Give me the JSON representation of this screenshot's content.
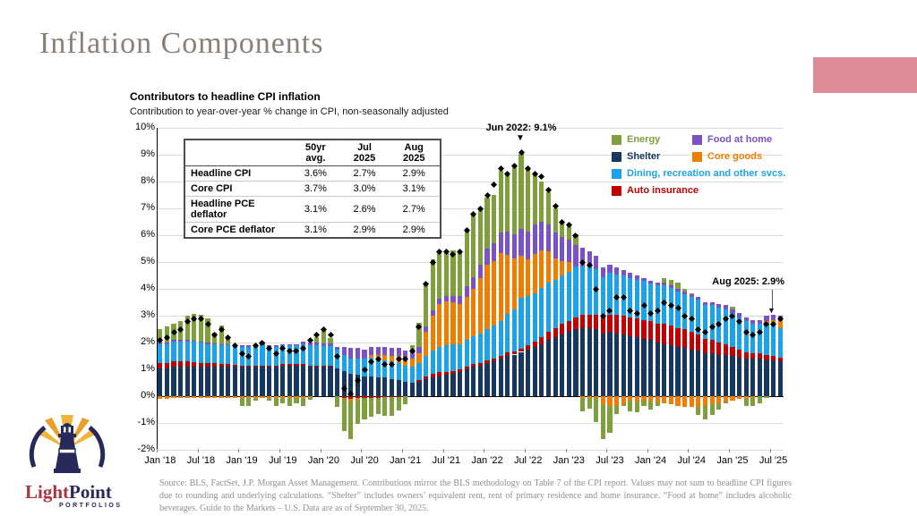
{
  "slide": {
    "title": "Inflation Components",
    "banner_color": "#db8c96"
  },
  "chart_header": {
    "title": "Contributors to headline CPI inflation",
    "subtitle": "Contribution to year-over-year % change in CPI, non-seasonally adjusted"
  },
  "table": {
    "headers": [
      "",
      "50yr avg.",
      "Jul 2025",
      "Aug 2025"
    ],
    "rows": [
      {
        "label": "Headline CPI",
        "values": [
          "3.6%",
          "2.7%",
          "2.9%"
        ]
      },
      {
        "label": "Core CPI",
        "values": [
          "3.7%",
          "3.0%",
          "3.1%"
        ]
      },
      {
        "label": "Headline PCE deflator",
        "values": [
          "3.1%",
          "2.6%",
          "2.7%"
        ]
      },
      {
        "label": "Core PCE deflator",
        "values": [
          "3.1%",
          "2.9%",
          "2.9%"
        ]
      }
    ]
  },
  "annotations": {
    "peak": "Jun 2022: 9.1%",
    "latest": "Aug 2025: 2.9%",
    "arrow_down": "▼"
  },
  "footer": {
    "source": "Source: BLS, FactSet, J.P. Morgan Asset Management.  Contributions mirror the BLS methodology on Table 7 of the CPI report. Values may not sum to headline CPI figures due to rounding and underlying calculations. “Shelter” includes owners’ equivalent rent, rent of primary residence and home insurance. “Food at home” includes alcoholic beverages.  Guide to the Markets – U.S. Data are as of September 30, 2025."
  },
  "logo": {
    "name_part1": "Light",
    "name_part2": "Point",
    "subtitle": "PORTFOLIOS"
  },
  "chart_data": {
    "type": "bar",
    "stacked": true,
    "title": "Contributors to headline CPI inflation",
    "ylabel": "Contribution to year-over-year % change in CPI",
    "ylim": [
      -2,
      10
    ],
    "y_tick_step": 1,
    "grid": true,
    "legend_position": "upper right inside",
    "start_month": "Jan 2018",
    "end_month": "Aug 2025",
    "num_months": 92,
    "x_tick_labels": [
      "Jan '18",
      "Jul '18",
      "Jan '19",
      "Jul '19",
      "Jan '20",
      "Jul '20",
      "Jan '21",
      "Jul '21",
      "Jan '22",
      "Jul '22",
      "Jan '23",
      "Jul '23",
      "Jan '24",
      "Jul '24",
      "Jan '25",
      "Jul '25"
    ],
    "legend": [
      {
        "label": "Energy",
        "color": "#7f9f3c"
      },
      {
        "label": "Food at home",
        "color": "#7a52c3"
      },
      {
        "label": "Shelter",
        "color": "#17375e"
      },
      {
        "label": "Core goods",
        "color": "#ef7d00"
      },
      {
        "label": "Dining, recreation and other svcs.",
        "color": "#1ca2e8"
      },
      {
        "label": "Auto insurance",
        "color": "#c00000"
      }
    ],
    "series": [
      {
        "name": "Shelter",
        "color": "#17375e",
        "values": [
          1.05,
          1.05,
          1.1,
          1.1,
          1.1,
          1.1,
          1.1,
          1.1,
          1.1,
          1.1,
          1.1,
          1.1,
          1.1,
          1.1,
          1.1,
          1.1,
          1.1,
          1.1,
          1.15,
          1.15,
          1.15,
          1.15,
          1.1,
          1.1,
          1.1,
          1.1,
          1.05,
          0.95,
          0.85,
          0.8,
          0.75,
          0.75,
          0.7,
          0.7,
          0.65,
          0.6,
          0.55,
          0.5,
          0.55,
          0.65,
          0.7,
          0.75,
          0.8,
          0.85,
          0.9,
          1.0,
          1.1,
          1.15,
          1.25,
          1.3,
          1.4,
          1.5,
          1.55,
          1.65,
          1.75,
          1.85,
          1.95,
          2.1,
          2.2,
          2.3,
          2.4,
          2.5,
          2.55,
          2.55,
          2.5,
          2.35,
          2.4,
          2.35,
          2.3,
          2.25,
          2.2,
          2.15,
          2.1,
          2.0,
          1.95,
          1.9,
          1.85,
          1.8,
          1.75,
          1.7,
          1.6,
          1.6,
          1.55,
          1.55,
          1.5,
          1.45,
          1.4,
          1.4,
          1.4,
          1.35,
          1.35,
          1.3
        ]
      },
      {
        "name": "Auto insurance",
        "color": "#c00000",
        "values": [
          0.2,
          0.2,
          0.2,
          0.2,
          0.2,
          0.18,
          0.15,
          0.15,
          0.12,
          0.1,
          0.1,
          0.08,
          0.05,
          0.05,
          0.05,
          0.05,
          0.05,
          0.05,
          0.05,
          0.05,
          0.05,
          0.05,
          0.05,
          0.05,
          0.02,
          0.02,
          0.0,
          -0.05,
          -0.1,
          -0.08,
          -0.05,
          -0.05,
          -0.05,
          -0.03,
          -0.02,
          -0.02,
          0.0,
          0.0,
          0.05,
          0.1,
          0.15,
          0.15,
          0.1,
          0.1,
          0.1,
          0.1,
          0.1,
          0.1,
          0.1,
          0.1,
          0.1,
          0.12,
          0.12,
          0.12,
          0.15,
          0.2,
          0.25,
          0.3,
          0.35,
          0.4,
          0.4,
          0.45,
          0.5,
          0.5,
          0.55,
          0.6,
          0.65,
          0.7,
          0.7,
          0.7,
          0.7,
          0.7,
          0.7,
          0.7,
          0.75,
          0.75,
          0.7,
          0.7,
          0.65,
          0.6,
          0.55,
          0.5,
          0.45,
          0.4,
          0.35,
          0.3,
          0.25,
          0.2,
          0.2,
          0.2,
          0.15,
          0.15
        ]
      },
      {
        "name": "Dining, recreation and other svcs.",
        "color": "#1ca2e8",
        "values": [
          0.7,
          0.7,
          0.75,
          0.75,
          0.75,
          0.75,
          0.75,
          0.7,
          0.7,
          0.7,
          0.7,
          0.7,
          0.7,
          0.7,
          0.75,
          0.75,
          0.7,
          0.7,
          0.7,
          0.7,
          0.7,
          0.75,
          0.75,
          0.75,
          0.75,
          0.75,
          0.7,
          0.6,
          0.55,
          0.6,
          0.65,
          0.7,
          0.7,
          0.65,
          0.65,
          0.65,
          0.6,
          0.6,
          0.65,
          0.75,
          0.85,
          0.95,
          1.0,
          1.0,
          0.95,
          1.0,
          1.05,
          1.1,
          1.15,
          1.25,
          1.3,
          1.45,
          1.55,
          1.9,
          1.85,
          1.8,
          1.85,
          1.85,
          1.8,
          1.8,
          1.85,
          1.9,
          1.8,
          1.75,
          1.7,
          1.5,
          1.55,
          1.5,
          1.5,
          1.45,
          1.45,
          1.45,
          1.4,
          1.45,
          1.45,
          1.4,
          1.35,
          1.3,
          1.3,
          1.3,
          1.25,
          1.3,
          1.3,
          1.3,
          1.25,
          1.2,
          1.15,
          1.1,
          1.1,
          1.15,
          1.15,
          1.1
        ]
      },
      {
        "name": "Core goods",
        "color": "#ef7d00",
        "values": [
          -0.1,
          -0.1,
          -0.08,
          -0.08,
          -0.08,
          -0.08,
          -0.08,
          -0.05,
          -0.05,
          -0.05,
          -0.05,
          -0.05,
          -0.05,
          -0.05,
          -0.05,
          -0.05,
          -0.08,
          -0.08,
          -0.05,
          -0.05,
          -0.05,
          -0.05,
          -0.02,
          0.0,
          0.0,
          0.0,
          0.0,
          -0.05,
          -0.1,
          -0.05,
          0.0,
          0.1,
          0.15,
          0.2,
          0.2,
          0.25,
          0.25,
          0.3,
          0.35,
          0.9,
          1.3,
          1.6,
          1.65,
          1.55,
          1.5,
          1.6,
          1.75,
          2.05,
          2.4,
          2.4,
          2.55,
          2.2,
          1.9,
          1.55,
          1.35,
          1.45,
          1.4,
          1.15,
          0.8,
          0.55,
          0.35,
          0.0,
          -0.05,
          -0.05,
          -0.05,
          -0.3,
          -0.35,
          -0.35,
          -0.25,
          -0.15,
          -0.2,
          -0.15,
          -0.2,
          -0.2,
          -0.25,
          -0.3,
          -0.35,
          -0.4,
          -0.4,
          -0.4,
          -0.35,
          -0.3,
          -0.25,
          -0.2,
          -0.15,
          -0.1,
          -0.1,
          -0.05,
          0.0,
          0.1,
          0.2,
          0.25
        ]
      },
      {
        "name": "Food at home",
        "color": "#7a52c3",
        "values": [
          0.05,
          0.05,
          0.05,
          0.05,
          0.05,
          0.05,
          0.05,
          0.05,
          0.05,
          0.05,
          0.05,
          0.05,
          0.05,
          0.05,
          0.05,
          0.05,
          0.05,
          0.05,
          0.05,
          0.05,
          0.05,
          0.1,
          0.1,
          0.1,
          0.1,
          0.1,
          0.1,
          0.3,
          0.4,
          0.4,
          0.35,
          0.3,
          0.3,
          0.3,
          0.3,
          0.3,
          0.3,
          0.3,
          0.25,
          0.2,
          0.2,
          0.2,
          0.2,
          0.25,
          0.3,
          0.4,
          0.45,
          0.5,
          0.6,
          0.65,
          0.75,
          0.85,
          0.9,
          1.0,
          1.05,
          1.1,
          1.05,
          1.0,
          0.95,
          0.9,
          0.85,
          0.8,
          0.7,
          0.6,
          0.5,
          0.35,
          0.3,
          0.25,
          0.2,
          0.2,
          0.15,
          0.1,
          0.1,
          0.1,
          0.1,
          0.1,
          0.1,
          0.1,
          0.1,
          0.1,
          0.1,
          0.1,
          0.15,
          0.15,
          0.15,
          0.15,
          0.15,
          0.15,
          0.15,
          0.2,
          0.2,
          0.2
        ]
      },
      {
        "name": "Energy",
        "color": "#7f9f3c",
        "values": [
          0.5,
          0.6,
          0.6,
          0.7,
          0.9,
          1.0,
          1.0,
          0.9,
          0.4,
          0.7,
          0.3,
          0.0,
          -0.3,
          -0.3,
          -0.1,
          0.1,
          -0.1,
          -0.3,
          -0.2,
          -0.3,
          -0.2,
          -0.3,
          -0.1,
          0.2,
          0.5,
          0.2,
          -0.4,
          -1.2,
          -1.4,
          -0.9,
          -0.8,
          -0.7,
          -0.6,
          -0.7,
          -0.7,
          -0.5,
          -0.3,
          0.2,
          0.9,
          1.6,
          1.9,
          1.7,
          1.6,
          1.7,
          1.7,
          2.1,
          2.4,
          2.1,
          1.9,
          1.8,
          2.3,
          2.1,
          2.5,
          2.8,
          2.3,
          1.9,
          1.5,
          1.2,
          0.9,
          0.5,
          0.6,
          0.4,
          -0.5,
          -0.4,
          -0.9,
          -1.3,
          -1.0,
          -0.3,
          -0.1,
          -0.4,
          -0.4,
          -0.2,
          -0.3,
          -0.15,
          0.15,
          0.2,
          0.25,
          0.1,
          0.05,
          -0.3,
          -0.5,
          -0.4,
          -0.25,
          -0.05,
          0.1,
          0.0,
          -0.25,
          -0.3,
          -0.25,
          -0.05,
          0.0,
          0.0
        ]
      }
    ],
    "headline_markers": {
      "name": "Headline CPI (y/y %)",
      "color": "#000000",
      "values": [
        2.1,
        2.2,
        2.4,
        2.5,
        2.8,
        2.9,
        2.9,
        2.7,
        2.3,
        2.5,
        2.2,
        1.9,
        1.6,
        1.5,
        1.9,
        2.0,
        1.8,
        1.6,
        1.8,
        1.7,
        1.7,
        1.8,
        2.1,
        2.3,
        2.5,
        2.3,
        1.5,
        0.3,
        0.1,
        0.6,
        1.0,
        1.3,
        1.4,
        1.2,
        1.2,
        1.4,
        1.4,
        1.7,
        2.6,
        4.2,
        5.0,
        5.4,
        5.4,
        5.3,
        5.4,
        6.2,
        6.8,
        7.0,
        7.5,
        7.9,
        8.5,
        8.3,
        8.6,
        9.1,
        8.5,
        8.3,
        8.2,
        7.7,
        7.1,
        6.5,
        6.4,
        6.0,
        5.0,
        4.9,
        4.0,
        3.0,
        3.2,
        3.7,
        3.7,
        3.2,
        3.1,
        3.4,
        3.1,
        3.2,
        3.5,
        3.4,
        3.3,
        3.0,
        2.9,
        2.5,
        2.4,
        2.6,
        2.7,
        2.9,
        3.0,
        2.8,
        2.4,
        2.3,
        2.4,
        2.7,
        2.7,
        2.9
      ]
    }
  }
}
